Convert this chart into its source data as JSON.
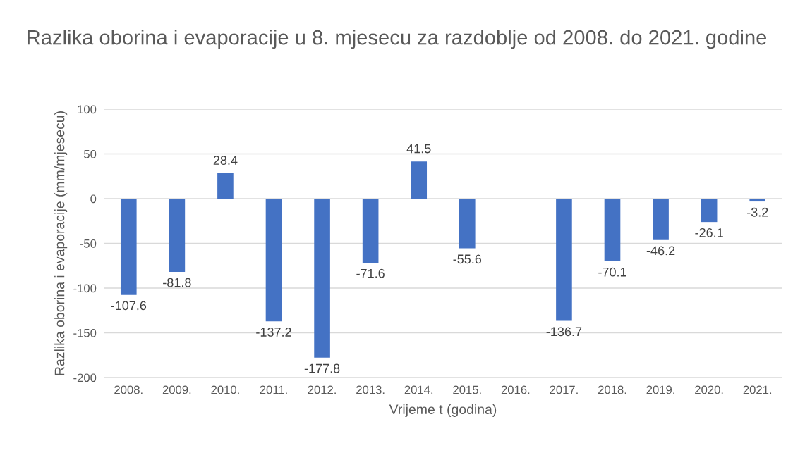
{
  "chart_data": {
    "type": "bar",
    "title": "Razlika oborina i evaporacije u 8. mjesecu za razdoblje od 2008. do 2021. godine",
    "xlabel": "Vrijeme t (godina)",
    "ylabel": "Razlika oborina i evaporacije (mm/mjesecu)",
    "categories": [
      "2008.",
      "2009.",
      "2010.",
      "2011.",
      "2012.",
      "2013.",
      "2014.",
      "2015.",
      "2016.",
      "2017.",
      "2018.",
      "2019.",
      "2020.",
      "2021."
    ],
    "values": [
      -107.6,
      -81.8,
      28.4,
      -137.2,
      -177.8,
      -71.6,
      41.5,
      -55.6,
      null,
      -136.7,
      -70.1,
      -46.2,
      -26.1,
      -3.2
    ],
    "color": "#4472c4",
    "ylim": [
      -200,
      100
    ],
    "yticks": [
      -200,
      -150,
      -100,
      -50,
      0,
      50,
      100
    ],
    "grid": "y",
    "data_labels": true
  }
}
